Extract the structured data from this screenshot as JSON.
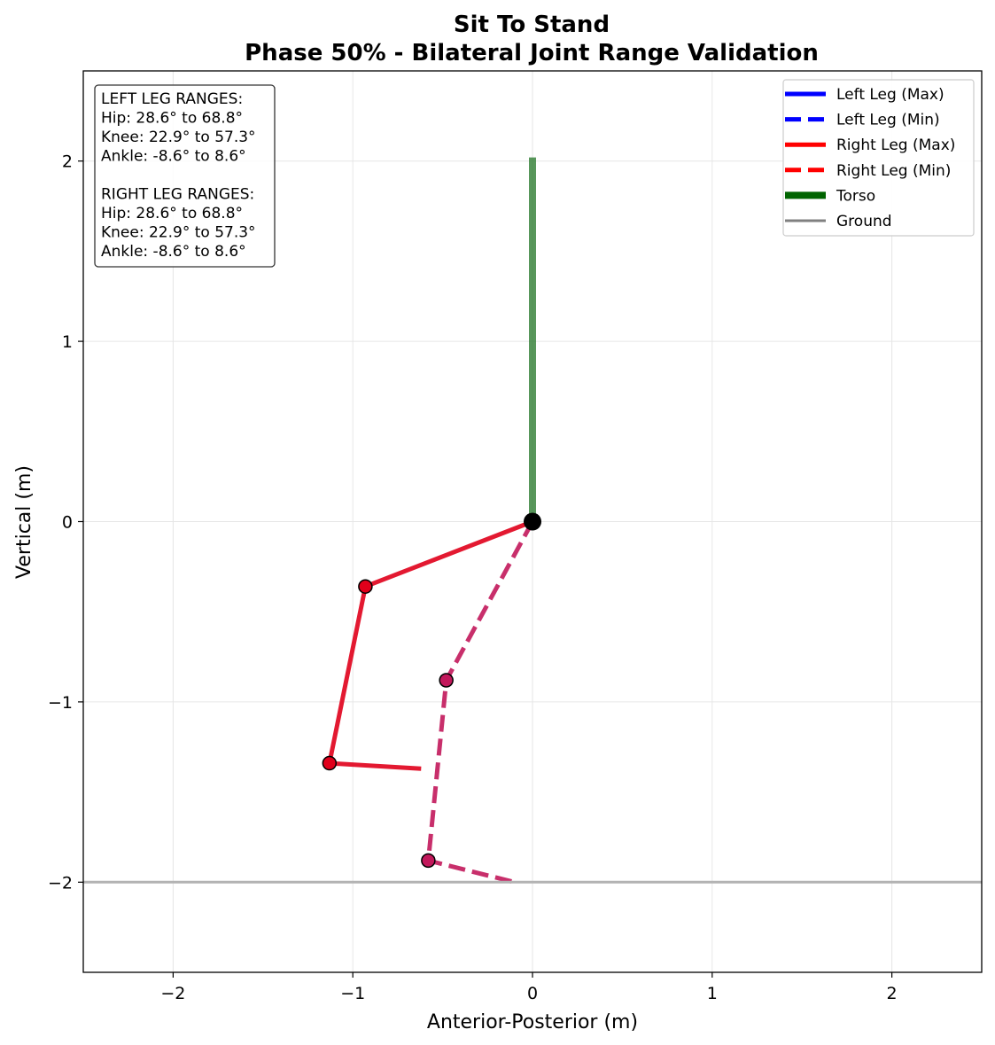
{
  "chart_data": {
    "type": "line",
    "title": "Sit To Stand",
    "subtitle": "Phase 50% - Bilateral Joint Range Validation",
    "xlabel": "Anterior-Posterior (m)",
    "ylabel": "Vertical (m)",
    "xlim": [
      -2.5,
      2.5
    ],
    "ylim": [
      -2.5,
      2.5
    ],
    "xticks": [
      -2,
      -1,
      0,
      1,
      2
    ],
    "yticks": [
      -2,
      -1,
      0,
      1,
      2
    ],
    "xtick_labels": [
      "−2",
      "−1",
      "0",
      "1",
      "2"
    ],
    "ytick_labels": [
      "−2",
      "−1",
      "0",
      "1",
      "2"
    ],
    "grid": true,
    "legend_position": "top-right",
    "legend": [
      {
        "label": "Left Leg (Max)",
        "color": "#0000ff",
        "style": "solid"
      },
      {
        "label": "Left Leg (Min)",
        "color": "#0000ff",
        "style": "dashed"
      },
      {
        "label": "Right Leg (Max)",
        "color": "#ff0000",
        "style": "solid"
      },
      {
        "label": "Right Leg (Min)",
        "color": "#ff0000",
        "style": "dashed"
      },
      {
        "label": "Torso",
        "color": "#006400",
        "style": "thick"
      },
      {
        "label": "Ground",
        "color": "#808080",
        "style": "solid"
      }
    ],
    "series": [
      {
        "name": "Torso",
        "color": "#2e7d32",
        "style": "thick",
        "x": [
          0,
          0
        ],
        "y": [
          0,
          2.02
        ]
      },
      {
        "name": "Left Leg (Min)",
        "color": "#c2185b",
        "style": "dashed",
        "markers": true,
        "x": [
          0,
          -0.48,
          -0.58,
          -0.1
        ],
        "y": [
          0,
          -0.88,
          -1.88,
          -2.0
        ]
      },
      {
        "name": "Right Leg (Max)",
        "color": "#e0001b",
        "style": "solid",
        "markers": true,
        "x": [
          0,
          -0.93,
          -1.13,
          -0.62
        ],
        "y": [
          0,
          -0.36,
          -1.34,
          -1.37
        ]
      },
      {
        "name": "Ground",
        "color": "#b3b3b3",
        "style": "solid",
        "x": [
          -2.5,
          2.5
        ],
        "y": [
          -2.0,
          -2.0
        ]
      }
    ],
    "hip_point": {
      "x": 0,
      "y": 0,
      "color": "#000000"
    },
    "annotation": [
      "LEFT LEG RANGES:",
      "Hip: 28.6° to 68.8°",
      "Knee: 22.9° to 57.3°",
      "Ankle: -8.6° to 8.6°",
      "",
      "RIGHT LEG RANGES:",
      "Hip: 28.6° to 68.8°",
      "Knee: 22.9° to 57.3°",
      "Ankle: -8.6° to 8.6°"
    ]
  }
}
